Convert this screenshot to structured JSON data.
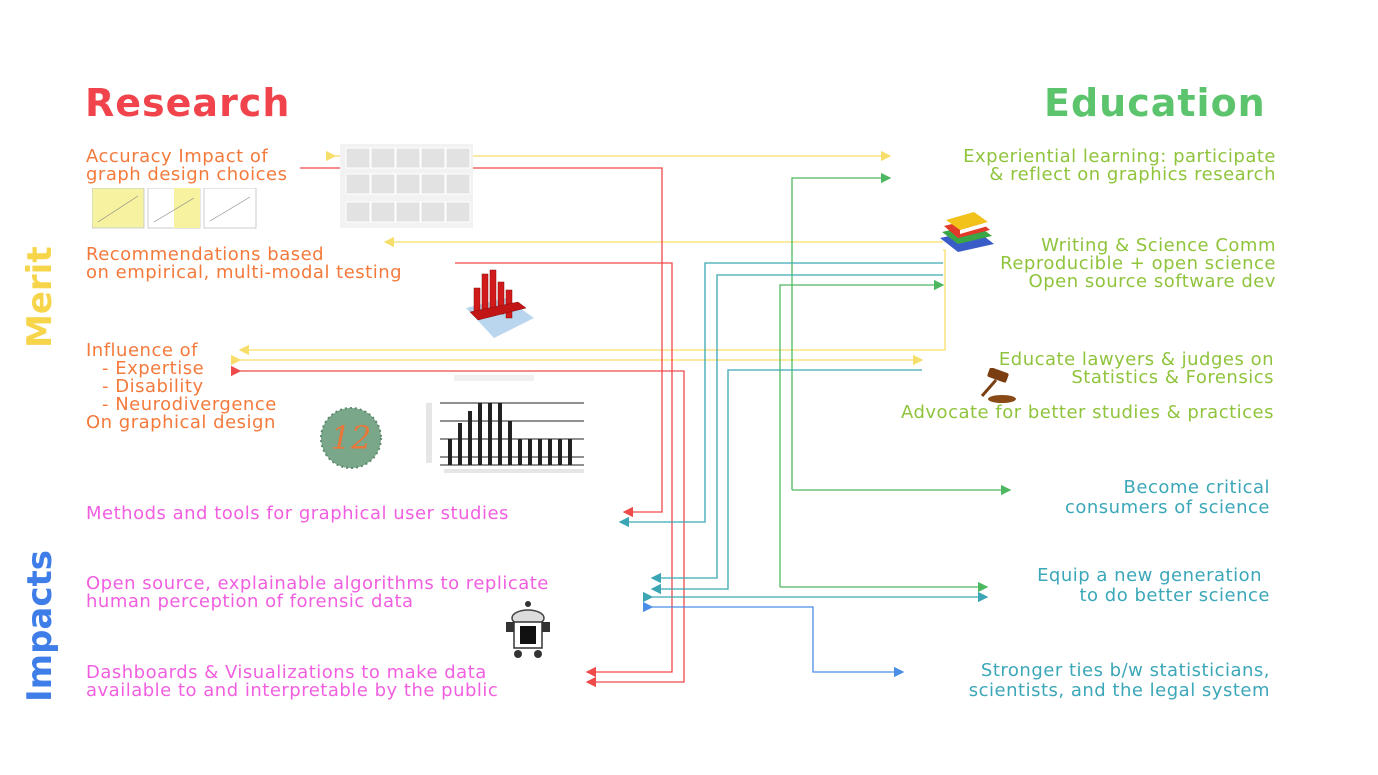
{
  "headers": {
    "research": "Research",
    "education": "Education"
  },
  "side_labels": {
    "merit": "Merit",
    "impacts": "Impacts"
  },
  "research": {
    "accuracy": [
      "Accuracy Impact of",
      "graph design choices"
    ],
    "recommendations": [
      "Recommendations based",
      "on empirical, multi-modal testing"
    ],
    "influence": [
      "Influence of",
      "- Expertise",
      "- Disability",
      "- Neurodivergence",
      "On graphical design"
    ]
  },
  "impacts_research": {
    "methods": "Methods and tools for graphical user studies",
    "open_source": [
      "Open source, explainable algorithms to replicate",
      "human perception of forensic data"
    ],
    "dashboards": [
      "Dashboards & Visualizations to make data",
      "available to and interpretable by the public"
    ]
  },
  "education": {
    "experiential": [
      "Experiential learning: participate",
      "& reflect on graphics research"
    ],
    "writing": "Writing & Science Comm",
    "reproducible": "Reproducible + open science",
    "open_source_dev": "Open source software dev",
    "educate_lawyers": [
      "Educate lawyers & judges on",
      "Statistics & Forensics"
    ],
    "advocate": "Advocate for better studies & practices"
  },
  "impacts_education": {
    "critical": [
      "Become critical",
      "consumers of science"
    ],
    "equip": [
      "Equip a new generation",
      "to do better science"
    ],
    "ties": [
      "Stronger ties b/w statisticians,",
      "scientists, and the legal system"
    ]
  },
  "images": {
    "ishihara_number": "12"
  },
  "colors": {
    "research_header": "#f0434b",
    "education_header": "#5cc46c",
    "merit_label": "#f7d54a",
    "impacts_label": "#3f7ee8",
    "orange_text": "#f47a3c",
    "pink_text": "#f25ee0",
    "green_text": "#8fc43c",
    "teal_text": "#3ba7b8",
    "yellow_arrow": "#f7de6a",
    "red_arrow": "#ef4a4a",
    "green_arrow": "#4db860",
    "teal_arrow": "#3aa6b4",
    "blue_arrow": "#4a8ee8"
  }
}
